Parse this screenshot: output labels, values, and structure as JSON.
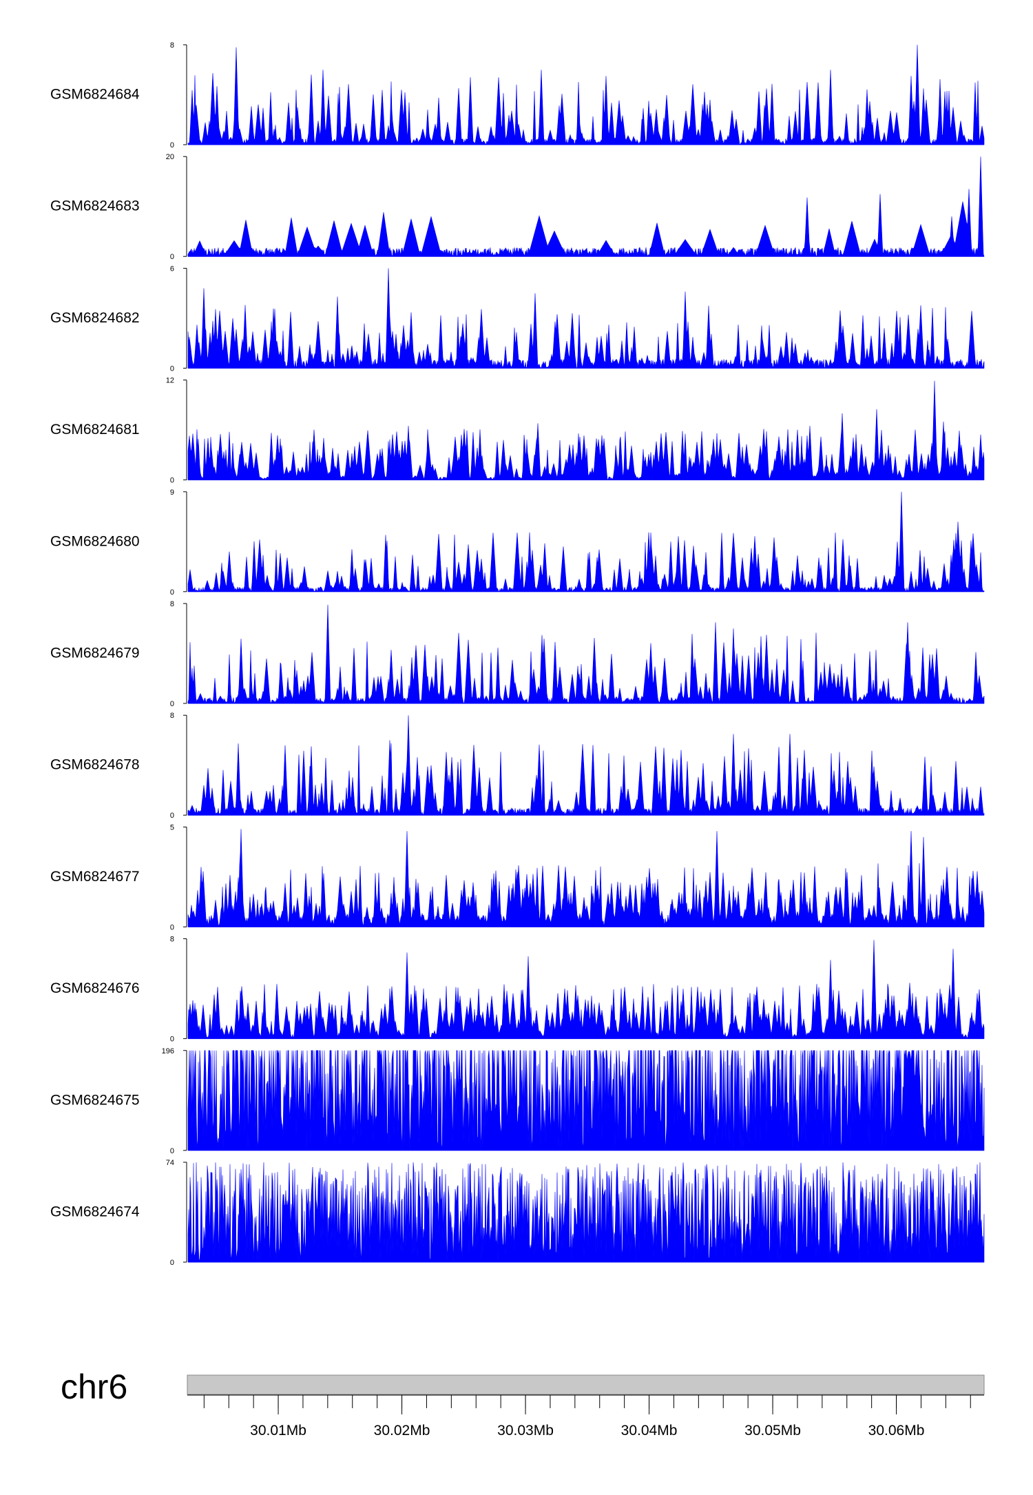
{
  "chart_data": {
    "type": "area",
    "colors": {
      "signal": "#0000ff",
      "axis": "#000000",
      "ideogram": "#c8c8c8"
    },
    "chromosome": "chr6",
    "x_range_mb": [
      30.0027,
      30.0671
    ],
    "x_ticks": [
      {
        "value": 30.01,
        "label": "30.01Mb"
      },
      {
        "value": 30.02,
        "label": "30.02Mb"
      },
      {
        "value": 30.03,
        "label": "30.03Mb"
      },
      {
        "value": 30.04,
        "label": "30.04Mb"
      },
      {
        "value": 30.05,
        "label": "30.05Mb"
      },
      {
        "value": 30.06,
        "label": "30.06Mb"
      }
    ],
    "minor_tick_step_mb": 0.002,
    "tracks": [
      {
        "name": "GSM6824684",
        "ymin": 0,
        "ymax": 8,
        "ymax_label": "8",
        "ymin_label": "0",
        "style": "noisy",
        "base": 0.1,
        "amp": 0.45,
        "seed": 11,
        "peaks": [
          [
            30.0066,
            7.8
          ],
          [
            30.0136,
            6.0
          ],
          [
            30.0313,
            6.0
          ],
          [
            30.0365,
            5.5
          ],
          [
            30.0547,
            6.0
          ],
          [
            30.0617,
            8.0
          ],
          [
            30.0612,
            5.5
          ],
          [
            30.0622,
            4.5
          ]
        ]
      },
      {
        "name": "GSM6824683",
        "ymin": 0,
        "ymax": 20,
        "ymax_label": "20",
        "ymin_label": "0",
        "style": "sparse",
        "base": 0.15,
        "amp": 0.35,
        "seed": 23,
        "peaks": [
          [
            30.0528,
            11.8
          ],
          [
            30.0587,
            12.5
          ],
          [
            30.0659,
            13.5
          ],
          [
            30.0668,
            20.0
          ],
          [
            30.0645,
            8.0
          ]
        ]
      },
      {
        "name": "GSM6824682",
        "ymin": 0,
        "ymax": 6,
        "ymax_label": "6",
        "ymin_label": "0",
        "style": "noisy",
        "base": 0.15,
        "amp": 0.4,
        "seed": 37,
        "peaks": [
          [
            30.0189,
            6.0
          ],
          [
            30.004,
            4.8
          ],
          [
            30.0148,
            4.3
          ],
          [
            30.0308,
            4.5
          ],
          [
            30.0429,
            4.6
          ]
        ]
      },
      {
        "name": "GSM6824681",
        "ymin": 0,
        "ymax": 12,
        "ymax_label": "12",
        "ymin_label": "0",
        "style": "dense",
        "base": 0.05,
        "amp": 0.32,
        "seed": 41,
        "peaks": [
          [
            30.0205,
            6.5
          ],
          [
            30.031,
            6.8
          ],
          [
            30.053,
            6.5
          ],
          [
            30.0584,
            8.5
          ],
          [
            30.0556,
            8.0
          ],
          [
            30.0631,
            11.9
          ],
          [
            30.0638,
            7.0
          ],
          [
            30.0588,
            6.0
          ]
        ]
      },
      {
        "name": "GSM6824680",
        "ymin": 0,
        "ymax": 9,
        "ymax_label": "9",
        "ymin_label": "0",
        "style": "noisy",
        "base": 0.08,
        "amp": 0.38,
        "seed": 53,
        "peaks": [
          [
            30.0604,
            9.0
          ],
          [
            30.065,
            6.3
          ],
          [
            30.0601,
            4.5
          ]
        ]
      },
      {
        "name": "GSM6824679",
        "ymin": 0,
        "ymax": 8,
        "ymax_label": "8",
        "ymin_label": "0",
        "style": "noisy",
        "base": 0.1,
        "amp": 0.45,
        "seed": 67,
        "peaks": [
          [
            30.014,
            7.9
          ],
          [
            30.0454,
            6.5
          ],
          [
            30.0468,
            6.0
          ],
          [
            30.0609,
            6.5
          ]
        ]
      },
      {
        "name": "GSM6824678",
        "ymin": 0,
        "ymax": 8,
        "ymax_label": "8",
        "ymin_label": "0",
        "style": "noisy",
        "base": 0.12,
        "amp": 0.45,
        "seed": 71,
        "peaks": [
          [
            30.0205,
            8.0
          ],
          [
            30.019,
            6.0
          ],
          [
            30.0468,
            6.5
          ],
          [
            30.0514,
            6.5
          ]
        ]
      },
      {
        "name": "GSM6824677",
        "ymin": 0,
        "ymax": 5,
        "ymax_label": "5",
        "ymin_label": "0",
        "style": "dense",
        "base": 0.2,
        "amp": 0.4,
        "seed": 83,
        "peaks": [
          [
            30.007,
            4.9
          ],
          [
            30.0204,
            4.8
          ],
          [
            30.0455,
            4.8
          ],
          [
            30.0612,
            4.8
          ],
          [
            30.0622,
            4.5
          ]
        ]
      },
      {
        "name": "GSM6824676",
        "ymin": 0,
        "ymax": 8,
        "ymax_label": "8",
        "ymin_label": "0",
        "style": "dense",
        "base": 0.1,
        "amp": 0.35,
        "seed": 97,
        "peaks": [
          [
            30.0204,
            6.9
          ],
          [
            30.0302,
            6.6
          ],
          [
            30.0582,
            7.9
          ],
          [
            30.0547,
            6.3
          ],
          [
            30.0646,
            7.2
          ]
        ]
      },
      {
        "name": "GSM6824675",
        "ymin": 0,
        "ymax": 196,
        "ymax_label": "196",
        "ymin_label": "0",
        "style": "flat",
        "base": 1.5,
        "amp": 1.5,
        "seed": 101,
        "peaks": [
          [
            30.061,
            195.0,
            0.00035
          ],
          [
            30.0616,
            150.0,
            0.0004
          ],
          [
            30.0066,
            14.0,
            0.0005
          ],
          [
            30.0666,
            65.0,
            0.0003
          ]
        ]
      },
      {
        "name": "GSM6824674",
        "ymin": 0,
        "ymax": 74,
        "ymax_label": "74",
        "ymin_label": "0",
        "style": "flat",
        "base": 1.0,
        "amp": 1.2,
        "seed": 113,
        "peaks": [
          [
            30.0133,
            67.0,
            0.0001
          ],
          [
            30.0374,
            73.0,
            0.0001
          ],
          [
            30.0069,
            11.0,
            0.00015
          ],
          [
            30.0447,
            7.0,
            0.0001
          ],
          [
            30.0057,
            3.0,
            0.0001
          ]
        ]
      }
    ]
  }
}
